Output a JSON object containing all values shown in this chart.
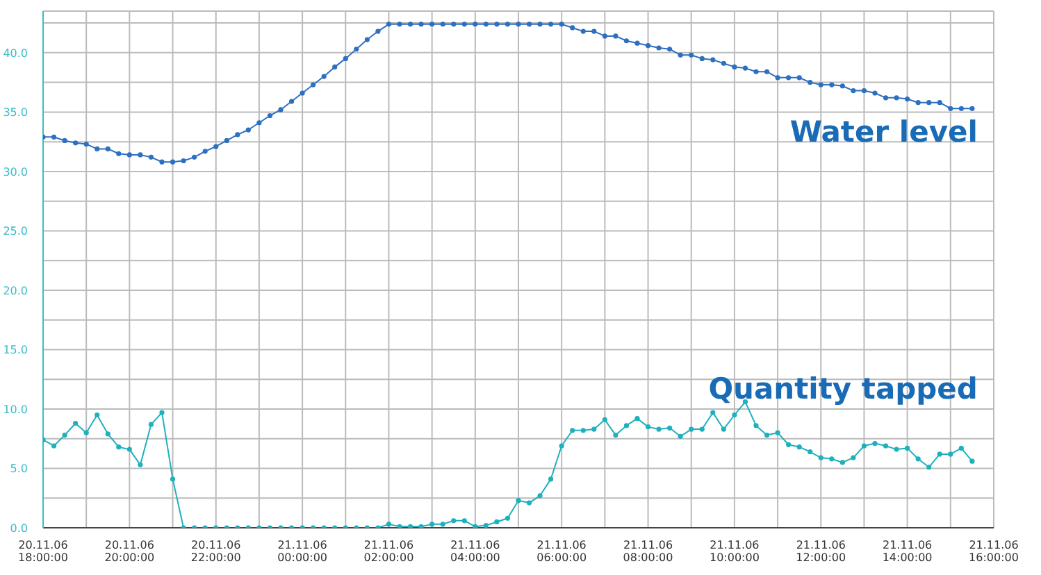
{
  "chart_data": {
    "type": "line",
    "x": [
      "--11-20T18:00",
      "--11-20T18:15",
      "--11-20T18:30",
      "--11-20T18:45",
      "--11-20T19:00",
      "--11-20T19:15",
      "--11-20T19:30",
      "--11-20T19:45",
      "--11-20T20:00",
      "--11-20T20:15",
      "--11-20T20:30",
      "--11-20T20:45",
      "--11-20T21:00",
      "--11-20T21:15",
      "--11-20T21:30",
      "--11-20T21:45",
      "--11-20T22:00",
      "--11-20T22:15",
      "--11-20T22:30",
      "--11-20T22:45",
      "--11-20T23:00",
      "--11-20T23:15",
      "--11-20T23:30",
      "--11-20T23:45",
      "--11-21T00:00",
      "--11-21T00:15",
      "--11-21T00:30",
      "--11-21T00:45",
      "--11-21T01:00",
      "--11-21T01:15",
      "--11-21T01:30",
      "--11-21T01:45",
      "--11-21T02:00",
      "--11-21T02:15",
      "--11-21T02:30",
      "--11-21T02:45",
      "--11-21T03:00",
      "--11-21T03:15",
      "--11-21T03:30",
      "--11-21T03:45",
      "--11-21T04:00",
      "--11-21T04:15",
      "--11-21T04:30",
      "--11-21T04:45",
      "--11-21T05:00",
      "--11-21T05:15",
      "--11-21T05:30",
      "--11-21T05:45",
      "--11-21T06:00",
      "--11-21T06:15",
      "--11-21T06:30",
      "--11-21T06:45",
      "--11-21T07:00",
      "--11-21T07:15",
      "--11-21T07:30",
      "--11-21T07:45",
      "--11-21T08:00",
      "--11-21T08:15",
      "--11-21T08:30",
      "--11-21T08:45",
      "--11-21T09:00",
      "--11-21T09:15",
      "--11-21T09:30",
      "--11-21T09:45",
      "--11-21T10:00",
      "--11-21T10:15",
      "--11-21T10:30",
      "--11-21T10:45",
      "--11-21T11:00",
      "--11-21T11:15",
      "--11-21T11:30",
      "--11-21T11:45",
      "--11-21T12:00",
      "--11-21T12:15",
      "--11-21T12:30",
      "--11-21T12:45",
      "--11-21T13:00",
      "--11-21T13:15",
      "--11-21T13:30",
      "--11-21T13:45",
      "--11-21T14:00",
      "--11-21T14:15",
      "--11-21T14:30",
      "--11-21T14:45",
      "--11-21T15:00",
      "--11-21T15:15",
      "--11-21T15:30"
    ],
    "series": [
      {
        "name": "Water level",
        "color": "#2e6fc0",
        "values": [
          32.9,
          32.9,
          32.6,
          32.4,
          32.3,
          31.9,
          31.9,
          31.5,
          31.4,
          31.4,
          31.2,
          30.8,
          30.8,
          30.9,
          31.2,
          31.7,
          32.1,
          32.6,
          33.1,
          33.5,
          34.1,
          34.7,
          35.2,
          35.9,
          36.6,
          37.3,
          38.0,
          38.8,
          39.5,
          40.3,
          41.1,
          41.8,
          42.4,
          42.4,
          42.4,
          42.4,
          42.4,
          42.4,
          42.4,
          42.4,
          42.4,
          42.4,
          42.4,
          42.4,
          42.4,
          42.4,
          42.4,
          42.4,
          42.4,
          42.1,
          41.8,
          41.8,
          41.4,
          41.4,
          41.0,
          40.8,
          40.6,
          40.4,
          40.3,
          39.8,
          39.8,
          39.5,
          39.4,
          39.1,
          38.8,
          38.7,
          38.4,
          38.4,
          37.9,
          37.9,
          37.9,
          37.5,
          37.3,
          37.3,
          37.2,
          36.8,
          36.8,
          36.6,
          36.2,
          36.2,
          36.1,
          35.8,
          35.8,
          35.8,
          35.3,
          35.3,
          35.3
        ]
      },
      {
        "name": "Quantity tapped",
        "color": "#1fb0bd",
        "values": [
          7.4,
          6.9,
          7.8,
          8.8,
          8.0,
          9.5,
          7.9,
          6.8,
          6.6,
          5.3,
          8.7,
          9.7,
          4.1,
          0,
          0,
          0,
          0,
          0,
          0,
          0,
          0,
          0,
          0,
          0,
          0,
          0,
          0,
          0,
          0,
          0,
          0,
          0,
          0.3,
          0.1,
          0.1,
          0.1,
          0.3,
          0.3,
          0.6,
          0.6,
          0.1,
          0.2,
          0.5,
          0.8,
          2.3,
          2.1,
          2.7,
          4.1,
          6.9,
          8.2,
          8.2,
          8.3,
          9.1,
          7.8,
          8.6,
          9.2,
          8.5,
          8.3,
          8.4,
          7.7,
          8.3,
          8.3,
          9.7,
          8.3,
          9.5,
          10.6,
          8.6,
          7.8,
          8.0,
          7.0,
          6.8,
          6.4,
          5.9,
          5.8,
          5.5,
          5.9,
          6.9,
          7.1,
          6.9,
          6.6,
          6.7,
          5.8,
          5.1,
          6.2,
          6.2,
          6.7,
          5.6
        ]
      }
    ],
    "xlim": [
      "--11-20T18:00",
      "--11-21T16:00"
    ],
    "xticks": [
      {
        "value": "--11-20T18:00",
        "label": "20.11.06 18:00:00"
      },
      {
        "value": "--11-20T19:00",
        "label": null
      },
      {
        "value": "--11-20T20:00",
        "label": "20.11.06 20:00:00"
      },
      {
        "value": "--11-20T21:00",
        "label": null
      },
      {
        "value": "--11-20T22:00",
        "label": "20.11.06 22:00:00"
      },
      {
        "value": "--11-20T23:00",
        "label": null
      },
      {
        "value": "--11-21T00:00",
        "label": "21.11.06 00:00:00"
      },
      {
        "value": "--11-21T01:00",
        "label": null
      },
      {
        "value": "--11-21T02:00",
        "label": "21.11.06 02:00:00"
      },
      {
        "value": "--11-21T03:00",
        "label": null
      },
      {
        "value": "--11-21T04:00",
        "label": "21.11.06 04:00:00"
      },
      {
        "value": "--11-21T05:00",
        "label": null
      },
      {
        "value": "--11-21T06:00",
        "label": "21.11.06 06:00:00"
      },
      {
        "value": "--11-21T07:00",
        "label": null
      },
      {
        "value": "--11-21T08:00",
        "label": "21.11.06 08:00:00"
      },
      {
        "value": "--11-21T09:00",
        "label": null
      },
      {
        "value": "--11-21T10:00",
        "label": "21.11.06 10:00:00"
      },
      {
        "value": "--11-21T11:00",
        "label": null
      },
      {
        "value": "--11-21T12:00",
        "label": "21.11.06 12:00:00"
      },
      {
        "value": "--11-21T13:00",
        "label": null
      },
      {
        "value": "--11-21T14:00",
        "label": "21.11.06 14:00:00"
      },
      {
        "value": "--11-21T15:00",
        "label": null
      },
      {
        "value": "--11-21T16:00",
        "label": "21.11.06 16:00:00"
      }
    ],
    "ylim": [
      0,
      43.5
    ],
    "yticks": [
      {
        "value": 0,
        "label": "0.0"
      },
      {
        "value": 2.5,
        "label": null
      },
      {
        "value": 5,
        "label": "5.0"
      },
      {
        "value": 7.5,
        "label": null
      },
      {
        "value": 10,
        "label": "10.0"
      },
      {
        "value": 12.5,
        "label": null
      },
      {
        "value": 15,
        "label": "15.0"
      },
      {
        "value": 17.5,
        "label": null
      },
      {
        "value": 20,
        "label": "20.0"
      },
      {
        "value": 22.5,
        "label": null
      },
      {
        "value": 25,
        "label": "25.0"
      },
      {
        "value": 27.5,
        "label": null
      },
      {
        "value": 30,
        "label": "30.0"
      },
      {
        "value": 32.5,
        "label": null
      },
      {
        "value": 35,
        "label": "35.0"
      },
      {
        "value": 37.5,
        "label": null
      },
      {
        "value": 40,
        "label": "40.0"
      },
      {
        "value": 42.5,
        "label": null
      }
    ],
    "grid": true,
    "marker": "circle",
    "line_style": "solid"
  }
}
